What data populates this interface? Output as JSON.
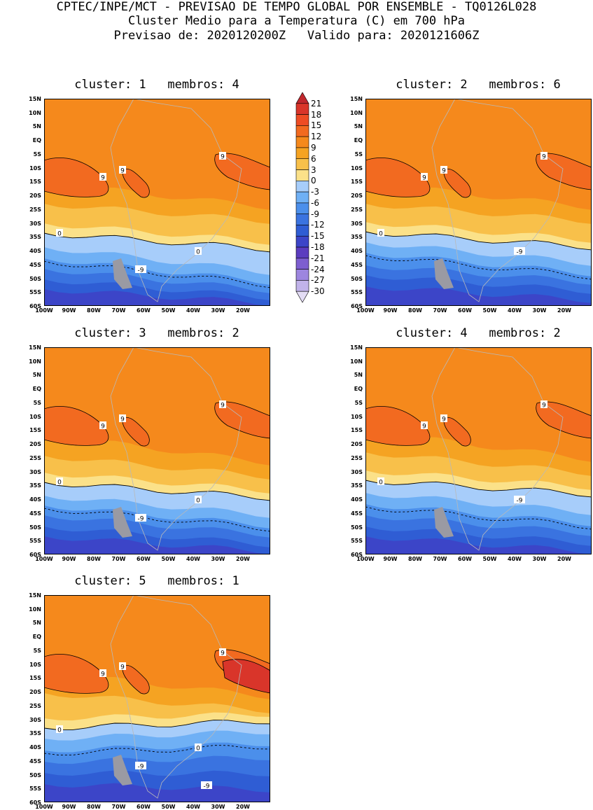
{
  "header": {
    "line1": "CPTEC/INPE/MCT - PREVISAO DE TEMPO GLOBAL POR ENSEMBLE - TQ0126L028",
    "line2": "Cluster Medio para a Temperatura (C) em 700 hPa",
    "line3": "Previsao de: 2020120200Z   Valido para: 2020121606Z"
  },
  "axes": {
    "lat_labels": [
      "15N",
      "10N",
      "5N",
      "EQ",
      "5S",
      "10S",
      "15S",
      "20S",
      "25S",
      "30S",
      "35S",
      "40S",
      "45S",
      "50S",
      "55S",
      "60S"
    ],
    "lon_labels": [
      "100W",
      "90W",
      "80W",
      "70W",
      "60W",
      "50W",
      "40W",
      "30W",
      "20W"
    ]
  },
  "colorbar": {
    "levels": [
      "21",
      "18",
      "15",
      "12",
      "9",
      "6",
      "3",
      "0",
      "-3",
      "-6",
      "-9",
      "-12",
      "-15",
      "-18",
      "-21",
      "-24",
      "-27",
      "-30"
    ],
    "colors": [
      "#c1272d",
      "#d9352a",
      "#ee4c24",
      "#f26a20",
      "#f5891c",
      "#f5a322",
      "#f8c04a",
      "#fbe189",
      "#a7cdfa",
      "#6fb0f5",
      "#4b8feb",
      "#3a73e0",
      "#2f5dd4",
      "#3c45c8",
      "#5b3cbf",
      "#7d5ed0",
      "#9d86df",
      "#c1b3ea",
      "#e3dcf5"
    ]
  },
  "chart_data": [
    {
      "type": "contour-map",
      "title": "cluster: 1   membros: 4",
      "cluster": "1",
      "members": "4",
      "contour_labels": [
        "9",
        "9",
        "9",
        "0",
        "0",
        "-9"
      ]
    },
    {
      "type": "contour-map",
      "title": "cluster: 2   membros: 6",
      "cluster": "2",
      "members": "6",
      "contour_labels": [
        "9",
        "9",
        "9",
        "0",
        "-9"
      ]
    },
    {
      "type": "contour-map",
      "title": "cluster: 3   membros: 2",
      "cluster": "3",
      "members": "2",
      "contour_labels": [
        "9",
        "9",
        "9",
        "0",
        "0",
        "-9"
      ]
    },
    {
      "type": "contour-map",
      "title": "cluster: 4   membros: 2",
      "cluster": "4",
      "members": "2",
      "contour_labels": [
        "9",
        "9",
        "9",
        "0",
        "-9"
      ]
    },
    {
      "type": "contour-map",
      "title": "cluster: 5   membros: 1",
      "cluster": "5",
      "members": "1",
      "contour_labels": [
        "9",
        "9",
        "9",
        "0",
        "0",
        "-9",
        "-9"
      ]
    }
  ]
}
